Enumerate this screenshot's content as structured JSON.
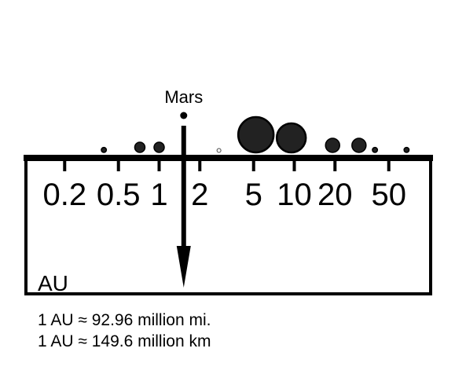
{
  "scale": {
    "type": "log",
    "unit": "AU",
    "range": [
      0.1,
      100
    ],
    "ticks": [
      {
        "value": 0.2,
        "label": "0.2"
      },
      {
        "value": 0.5,
        "label": "0.5"
      },
      {
        "value": 1,
        "label": "1"
      },
      {
        "value": 2,
        "label": "2"
      },
      {
        "value": 5,
        "label": "5"
      },
      {
        "value": 10,
        "label": "10"
      },
      {
        "value": 20,
        "label": "20"
      },
      {
        "value": 50,
        "label": "50"
      }
    ]
  },
  "bodies": [
    {
      "distance": 0.39,
      "size": "tiny"
    },
    {
      "distance": 0.72,
      "size": "small"
    },
    {
      "distance": 1.0,
      "size": "small"
    },
    {
      "distance": 2.77,
      "size": "dot"
    },
    {
      "distance": 5.2,
      "size": "giant"
    },
    {
      "distance": 9.5,
      "size": "large"
    },
    {
      "distance": 19.2,
      "size": "medium"
    },
    {
      "distance": 30.1,
      "size": "medium"
    },
    {
      "distance": 39.5,
      "size": "tiny"
    },
    {
      "distance": 67.7,
      "size": "tiny"
    }
  ],
  "marker": {
    "label": "Mars",
    "distance": 1.52
  },
  "notes": [
    "1 AU ≈ 92.96 million mi.",
    "1 AU ≈ 149.6 million km"
  ]
}
